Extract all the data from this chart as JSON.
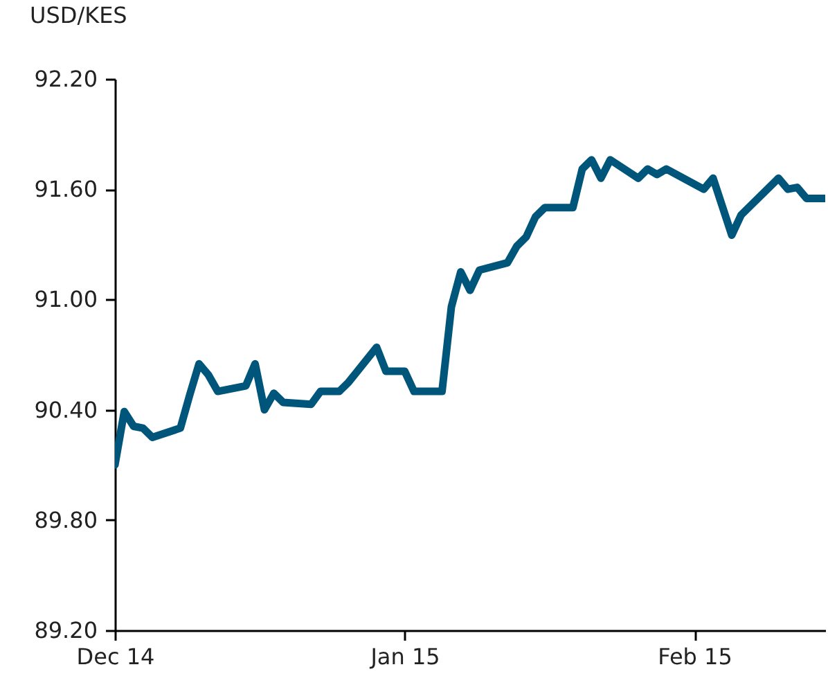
{
  "chart_data": {
    "type": "line",
    "ylabel": "USD/KES",
    "x": [
      "2014-12-01",
      "2014-12-02",
      "2014-12-03",
      "2014-12-04",
      "2014-12-05",
      "2014-12-08",
      "2014-12-09",
      "2014-12-10",
      "2014-12-11",
      "2014-12-12",
      "2014-12-15",
      "2014-12-16",
      "2014-12-17",
      "2014-12-18",
      "2014-12-19",
      "2014-12-22",
      "2014-12-23",
      "2014-12-25",
      "2014-12-26",
      "2014-12-29",
      "2014-12-30",
      "2015-01-01",
      "2015-01-02",
      "2015-01-05",
      "2015-01-06",
      "2015-01-07",
      "2015-01-08",
      "2015-01-09",
      "2015-01-12",
      "2015-01-13",
      "2015-01-14",
      "2015-01-15",
      "2015-01-16",
      "2015-01-19",
      "2015-01-20",
      "2015-01-21",
      "2015-01-22",
      "2015-01-23",
      "2015-01-26",
      "2015-01-27",
      "2015-01-28",
      "2015-01-29",
      "2015-02-02",
      "2015-02-03",
      "2015-02-05",
      "2015-02-06",
      "2015-02-10",
      "2015-02-11",
      "2015-02-12",
      "2015-02-13",
      "2015-02-15"
    ],
    "series": [
      {
        "color": "#00567a",
        "values": [
          90.1,
          90.39,
          90.31,
          90.3,
          90.25,
          90.3,
          90.48,
          90.65,
          90.59,
          90.5,
          90.53,
          90.65,
          90.4,
          90.49,
          90.44,
          90.43,
          90.5,
          90.5,
          90.55,
          90.74,
          90.61,
          90.61,
          90.5,
          90.5,
          90.96,
          91.15,
          91.05,
          91.16,
          91.2,
          91.29,
          91.34,
          91.45,
          91.5,
          91.5,
          91.71,
          91.76,
          91.66,
          91.76,
          91.66,
          91.71,
          91.68,
          91.71,
          91.6,
          91.66,
          91.35,
          91.46,
          91.66,
          91.6,
          91.61,
          91.55,
          91.55
        ]
      }
    ],
    "xlim": [
      "2014-12-01",
      "2015-02-15"
    ],
    "xticks": [
      {
        "value": "2014-12-01",
        "label": "Dec 14"
      },
      {
        "value": "2015-01-01",
        "label": "Jan 15"
      },
      {
        "value": "2015-02-01",
        "label": "Feb 15"
      }
    ],
    "ylim": [
      89.2,
      92.2
    ],
    "yticks": [
      {
        "value": 89.2,
        "label": "89.20"
      },
      {
        "value": 89.8,
        "label": "89.80"
      },
      {
        "value": 90.4,
        "label": "90.40"
      },
      {
        "value": 91.0,
        "label": "91.00"
      },
      {
        "value": 91.6,
        "label": "91.60"
      },
      {
        "value": 92.2,
        "label": "92.20"
      }
    ],
    "grid": false,
    "marker": "none",
    "line_style": "solid"
  }
}
